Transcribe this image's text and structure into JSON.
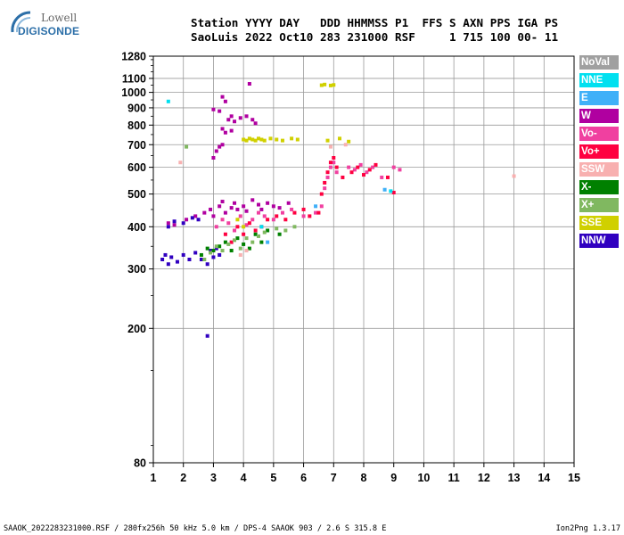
{
  "logo": {
    "line1": "Lowell",
    "line2": "DIGISONDE"
  },
  "header": {
    "line1": "Station YYYY DAY   DDD HHMMSS P1  FFS S AXN PPS IGA PS",
    "line2": "SaoLuis 2022 Oct10 283 231000 RSF     1 715 100 00- 11"
  },
  "legend": [
    {
      "label": "NoVal",
      "color": "#a0a0a0",
      "text_color": "#ffffff"
    },
    {
      "label": "NNE",
      "color": "#00e0f0",
      "text_color": "#ffffff"
    },
    {
      "label": "E",
      "color": "#40b0f8",
      "text_color": "#ffffff"
    },
    {
      "label": "W",
      "color": "#b000a0",
      "text_color": "#ffffff"
    },
    {
      "label": "Vo-",
      "color": "#f040a0",
      "text_color": "#ffffff"
    },
    {
      "label": "Vo+",
      "color": "#ff0040",
      "text_color": "#ffffff"
    },
    {
      "label": "SSW",
      "color": "#f8b0b0",
      "text_color": "#ffffff"
    },
    {
      "label": "X-",
      "color": "#008000",
      "text_color": "#ffffff"
    },
    {
      "label": "X+",
      "color": "#80b860",
      "text_color": "#ffffff"
    },
    {
      "label": "SSE",
      "color": "#d0d000",
      "text_color": "#ffffff"
    },
    {
      "label": "NNW",
      "color": "#3000c0",
      "text_color": "#ffffff"
    }
  ],
  "footer": {
    "left": "SAAOK_2022283231000.RSF / 280fx256h 50 kHz 5.0 km / DPS-4 SAAOK 903 / 2.6 S 315.8 E",
    "right": "Ion2Png 1.3.17"
  },
  "chart_data": {
    "type": "scatter",
    "title": "",
    "xlabel": "",
    "ylabel": "",
    "xlim": [
      1,
      15
    ],
    "ylim": [
      80,
      1280
    ],
    "x_ticks": [
      "1",
      "2",
      "3",
      "4",
      "5",
      "6",
      "7",
      "8",
      "9",
      "10",
      "11",
      "12",
      "13",
      "14",
      "15"
    ],
    "y_ticks": [
      "80",
      "200",
      "300",
      "400",
      "500",
      "600",
      "700",
      "800",
      "900",
      "1000",
      "1100",
      "1280"
    ],
    "grid": true,
    "series": [
      {
        "name": "W",
        "color": "#b000a0",
        "points": [
          [
            1.5,
            410
          ],
          [
            1.7,
            405
          ],
          [
            2.1,
            420
          ],
          [
            2.4,
            430
          ],
          [
            2.7,
            440
          ],
          [
            2.9,
            450
          ],
          [
            3.0,
            430
          ],
          [
            3.2,
            460
          ],
          [
            3.3,
            475
          ],
          [
            3.4,
            440
          ],
          [
            3.6,
            455
          ],
          [
            3.7,
            470
          ],
          [
            3.8,
            450
          ],
          [
            4.0,
            460
          ],
          [
            4.1,
            445
          ],
          [
            4.3,
            480
          ],
          [
            4.5,
            465
          ],
          [
            4.6,
            450
          ],
          [
            4.8,
            470
          ],
          [
            5.0,
            460
          ],
          [
            5.2,
            455
          ],
          [
            5.5,
            470
          ],
          [
            3.0,
            640
          ],
          [
            3.1,
            670
          ],
          [
            3.2,
            690
          ],
          [
            3.3,
            700
          ],
          [
            3.5,
            830
          ],
          [
            3.6,
            850
          ],
          [
            3.7,
            820
          ],
          [
            3.9,
            840
          ],
          [
            4.1,
            850
          ],
          [
            4.3,
            830
          ],
          [
            4.4,
            810
          ],
          [
            3.0,
            890
          ],
          [
            3.2,
            880
          ],
          [
            3.3,
            970
          ],
          [
            3.4,
            940
          ],
          [
            4.2,
            1060
          ],
          [
            3.3,
            780
          ],
          [
            3.4,
            760
          ],
          [
            3.6,
            770
          ]
        ]
      },
      {
        "name": "Vo-",
        "color": "#f040a0",
        "points": [
          [
            3.1,
            400
          ],
          [
            3.3,
            420
          ],
          [
            3.5,
            410
          ],
          [
            3.7,
            390
          ],
          [
            3.9,
            430
          ],
          [
            4.1,
            405
          ],
          [
            4.3,
            420
          ],
          [
            4.5,
            440
          ],
          [
            4.7,
            430
          ],
          [
            5.0,
            420
          ],
          [
            5.3,
            440
          ],
          [
            5.6,
            450
          ],
          [
            6.0,
            430
          ],
          [
            6.4,
            440
          ],
          [
            6.6,
            460
          ],
          [
            6.7,
            520
          ],
          [
            6.8,
            560
          ],
          [
            6.9,
            600
          ],
          [
            7.0,
            620
          ],
          [
            7.1,
            580
          ],
          [
            7.5,
            600
          ],
          [
            7.7,
            590
          ],
          [
            7.9,
            610
          ],
          [
            8.1,
            580
          ],
          [
            8.3,
            600
          ],
          [
            8.6,
            560
          ],
          [
            9.0,
            600
          ],
          [
            9.2,
            590
          ]
        ]
      },
      {
        "name": "Vo+",
        "color": "#ff0040",
        "points": [
          [
            3.4,
            380
          ],
          [
            3.6,
            360
          ],
          [
            3.8,
            400
          ],
          [
            4.0,
            380
          ],
          [
            4.2,
            410
          ],
          [
            4.4,
            390
          ],
          [
            4.6,
            400
          ],
          [
            4.8,
            420
          ],
          [
            5.1,
            430
          ],
          [
            5.4,
            420
          ],
          [
            5.7,
            440
          ],
          [
            6.0,
            450
          ],
          [
            6.2,
            430
          ],
          [
            6.5,
            440
          ],
          [
            6.6,
            500
          ],
          [
            6.7,
            540
          ],
          [
            6.8,
            580
          ],
          [
            6.9,
            620
          ],
          [
            7.0,
            640
          ],
          [
            7.1,
            600
          ],
          [
            7.3,
            560
          ],
          [
            7.6,
            580
          ],
          [
            7.8,
            600
          ],
          [
            8.0,
            570
          ],
          [
            8.2,
            590
          ],
          [
            8.4,
            610
          ],
          [
            8.8,
            560
          ],
          [
            9.0,
            505
          ]
        ]
      },
      {
        "name": "NNW",
        "color": "#3000c0",
        "points": [
          [
            1.3,
            320
          ],
          [
            1.4,
            330
          ],
          [
            1.5,
            310
          ],
          [
            1.6,
            325
          ],
          [
            1.8,
            315
          ],
          [
            2.0,
            330
          ],
          [
            2.2,
            320
          ],
          [
            2.4,
            335
          ],
          [
            2.6,
            320
          ],
          [
            2.8,
            310
          ],
          [
            2.9,
            340
          ],
          [
            3.0,
            325
          ],
          [
            3.1,
            345
          ],
          [
            3.2,
            330
          ],
          [
            2.8,
            190
          ],
          [
            1.5,
            400
          ],
          [
            1.7,
            415
          ],
          [
            2.0,
            410
          ],
          [
            2.3,
            425
          ],
          [
            2.5,
            420
          ]
        ]
      },
      {
        "name": "X-",
        "color": "#008000",
        "points": [
          [
            2.6,
            330
          ],
          [
            2.8,
            345
          ],
          [
            3.0,
            340
          ],
          [
            3.2,
            350
          ],
          [
            3.4,
            360
          ],
          [
            3.6,
            340
          ],
          [
            3.8,
            370
          ],
          [
            4.0,
            355
          ],
          [
            4.2,
            345
          ],
          [
            4.4,
            380
          ],
          [
            4.6,
            360
          ],
          [
            4.8,
            390
          ],
          [
            5.2,
            380
          ]
        ]
      },
      {
        "name": "X+",
        "color": "#80b860",
        "points": [
          [
            2.7,
            320
          ],
          [
            2.9,
            335
          ],
          [
            3.1,
            350
          ],
          [
            3.3,
            340
          ],
          [
            3.5,
            355
          ],
          [
            3.7,
            365
          ],
          [
            3.9,
            345
          ],
          [
            4.1,
            370
          ],
          [
            4.3,
            360
          ],
          [
            4.5,
            375
          ],
          [
            4.7,
            385
          ],
          [
            5.1,
            395
          ],
          [
            5.4,
            390
          ],
          [
            5.7,
            400
          ],
          [
            2.1,
            690
          ]
        ]
      },
      {
        "name": "SSE",
        "color": "#d0d000",
        "points": [
          [
            4.0,
            725
          ],
          [
            4.1,
            720
          ],
          [
            4.2,
            730
          ],
          [
            4.3,
            725
          ],
          [
            4.4,
            720
          ],
          [
            4.5,
            730
          ],
          [
            4.6,
            725
          ],
          [
            4.7,
            720
          ],
          [
            4.9,
            730
          ],
          [
            5.1,
            725
          ],
          [
            5.3,
            720
          ],
          [
            5.6,
            730
          ],
          [
            5.8,
            725
          ],
          [
            6.6,
            1050
          ],
          [
            6.7,
            1055
          ],
          [
            6.9,
            1048
          ],
          [
            7.0,
            1052
          ],
          [
            6.8,
            720
          ],
          [
            7.2,
            730
          ],
          [
            7.5,
            715
          ],
          [
            3.8,
            420
          ],
          [
            4.0,
            400
          ]
        ]
      },
      {
        "name": "SSW",
        "color": "#f8b0b0",
        "points": [
          [
            1.9,
            620
          ],
          [
            3.9,
            330
          ],
          [
            4.1,
            340
          ],
          [
            13.0,
            565
          ],
          [
            6.9,
            690
          ],
          [
            7.4,
            700
          ]
        ]
      },
      {
        "name": "NNE",
        "color": "#00e0f0",
        "points": [
          [
            1.5,
            940
          ],
          [
            4.6,
            400
          ],
          [
            8.9,
            510
          ]
        ]
      },
      {
        "name": "E",
        "color": "#40b0f8",
        "points": [
          [
            4.8,
            360
          ],
          [
            6.4,
            460
          ],
          [
            8.7,
            515
          ]
        ]
      }
    ]
  }
}
